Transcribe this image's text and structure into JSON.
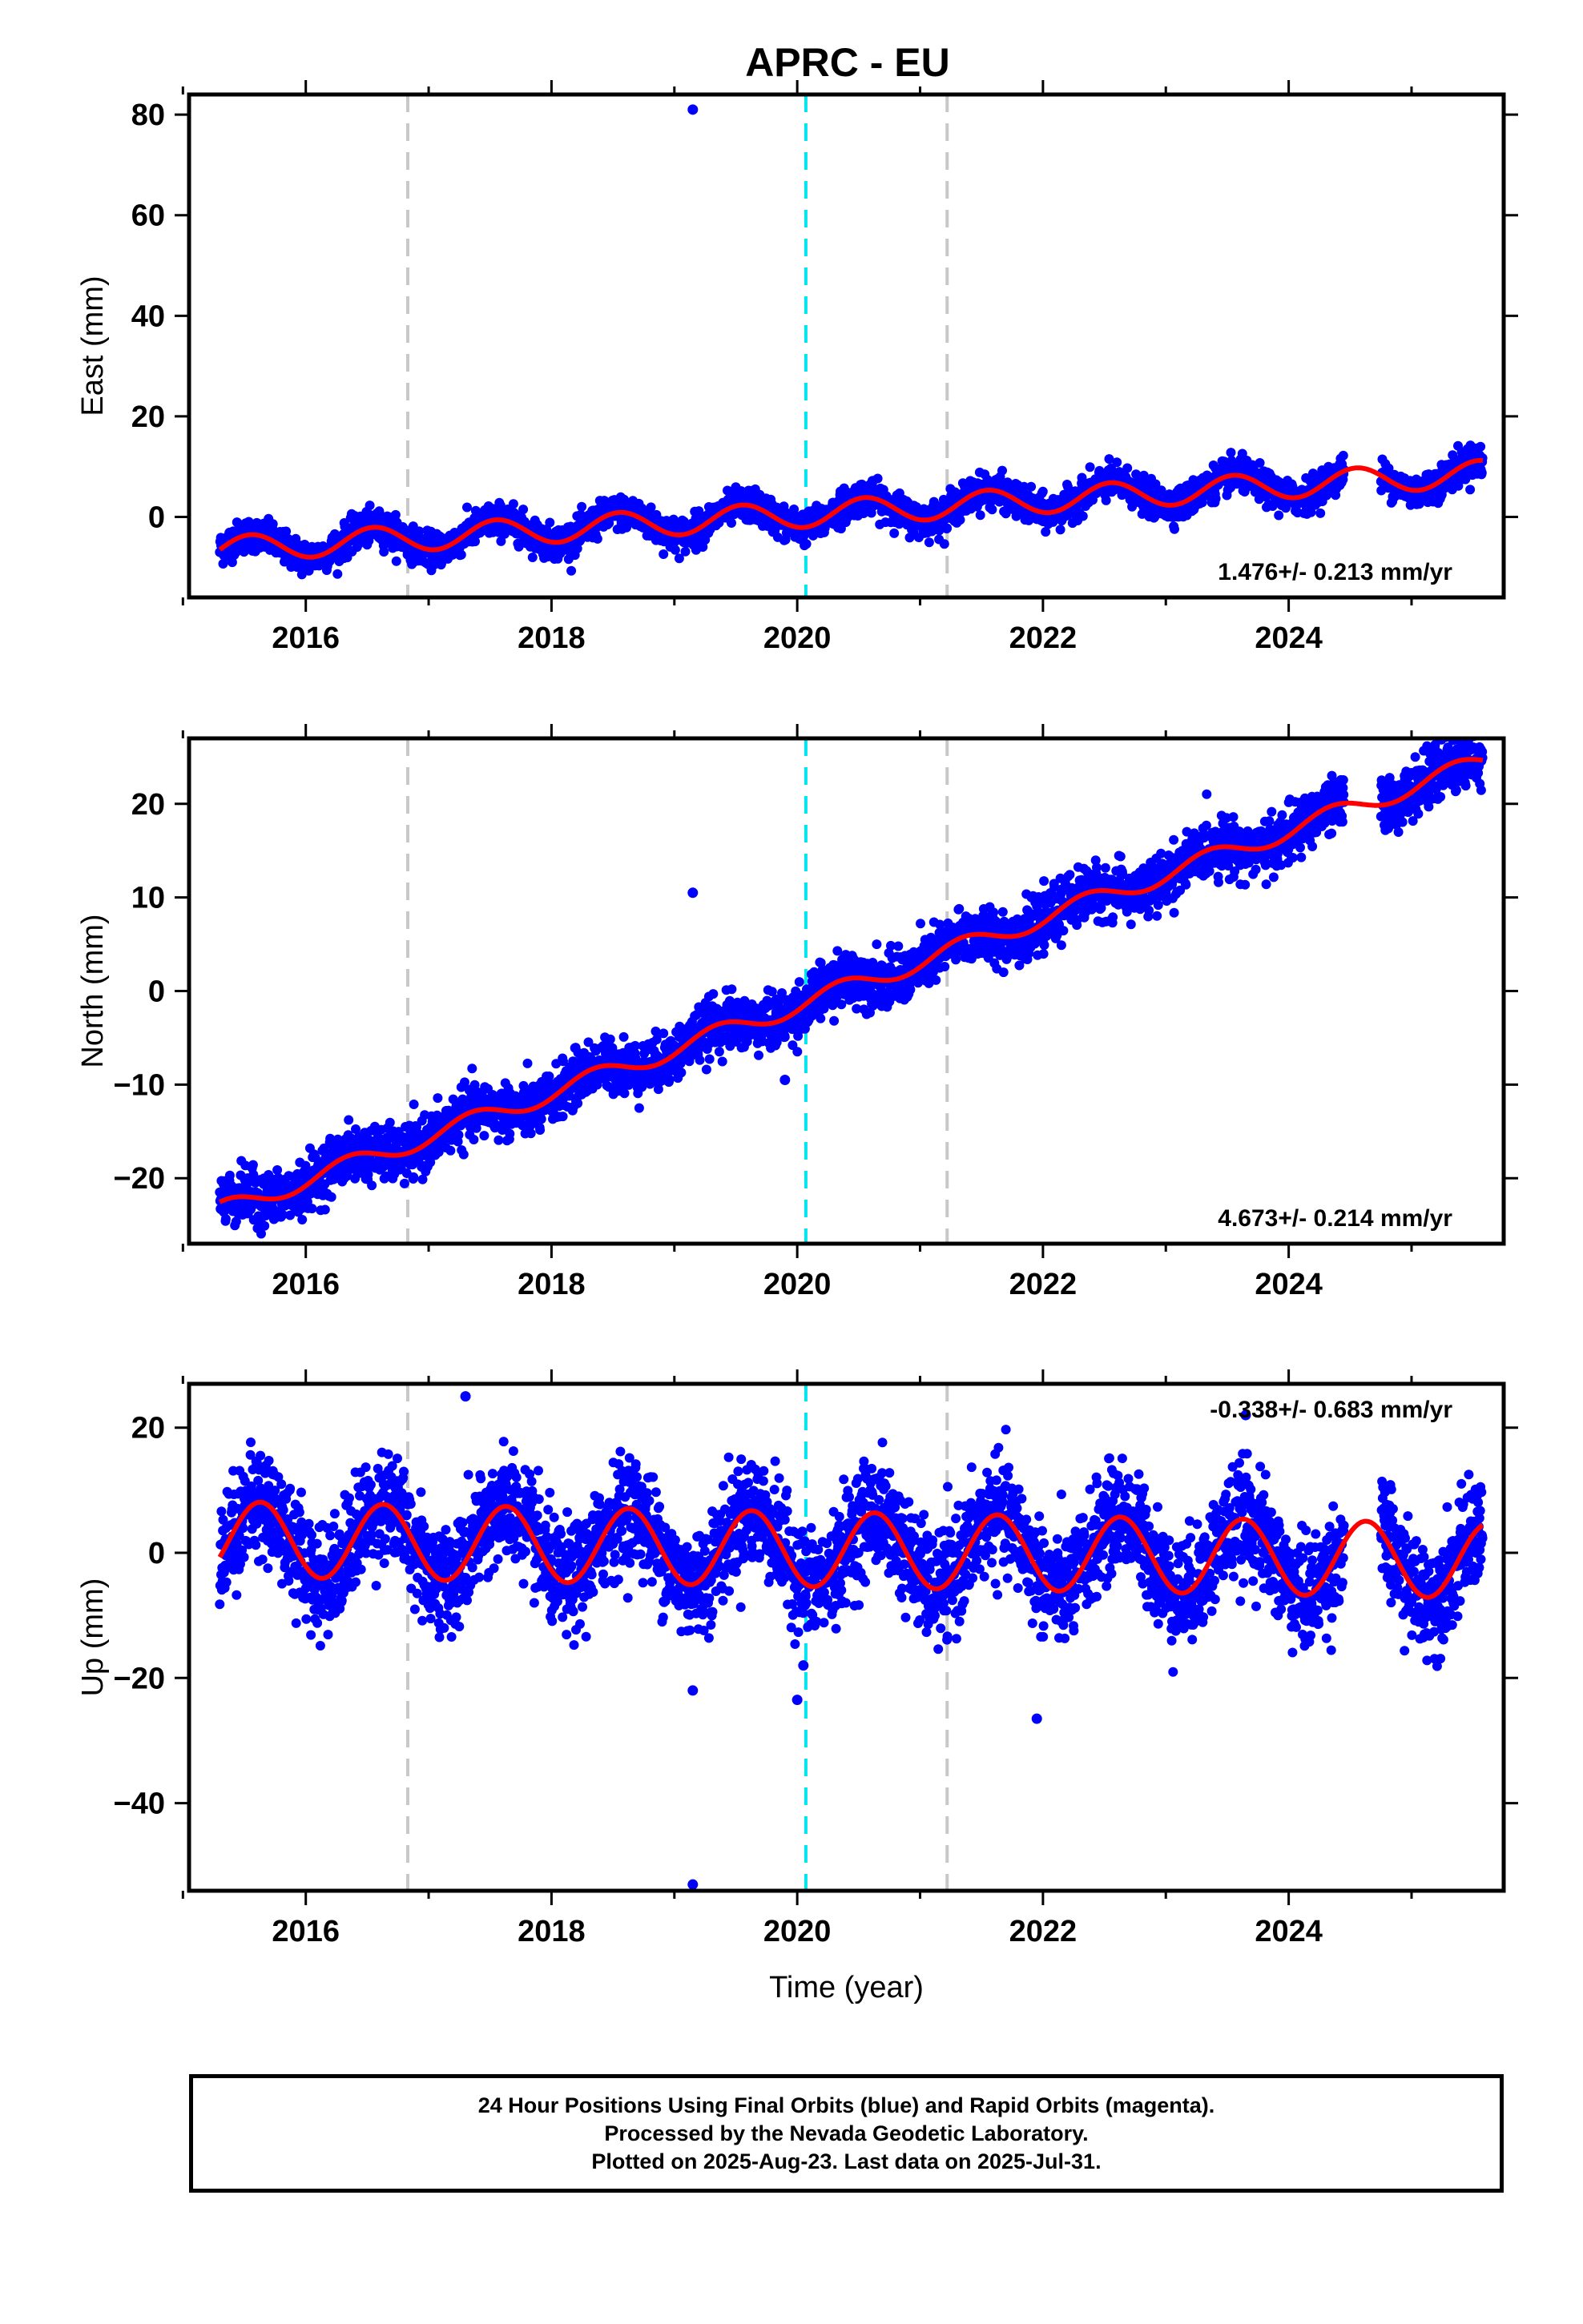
{
  "title": "APRC - EU",
  "colors": {
    "final_orbits": "#0000ff",
    "model": "#ff0000",
    "event_cyan": "#00e5ee",
    "event_gray": "#c8c8c8",
    "frame": "#000000"
  },
  "footer": {
    "line1": "24 Hour Positions Using Final Orbits (blue) and Rapid Orbits (magenta).",
    "line2": "Processed by the Nevada Geodetic Laboratory.",
    "line3": "Plotted on 2025-Aug-23. Last data on 2025-Jul-31."
  },
  "chart_data": [
    {
      "type": "scatter",
      "name": "east",
      "ylabel": "East (mm)",
      "xlabel": "",
      "xlim": [
        2015.05,
        2025.75
      ],
      "ylim": [
        -16,
        84
      ],
      "yticks": [
        0,
        20,
        40,
        60,
        80
      ],
      "xticks": [
        2016,
        2018,
        2020,
        2022,
        2024
      ],
      "rate_label": "1.476+/- 0.213 mm/yr",
      "trend": {
        "start": -6.5,
        "rate": 1.476,
        "amplitude": 2.6,
        "phase": 0.3,
        "noise": 1.6
      },
      "gap": [
        2024.45,
        2024.75
      ],
      "outliers": [
        [
          2019.15,
          81
        ]
      ],
      "event_lines": {
        "gray": [
          2016.83,
          2021.22
        ],
        "cyan": [
          2020.07
        ]
      }
    },
    {
      "type": "scatter",
      "name": "north",
      "ylabel": "North (mm)",
      "xlabel": "",
      "xlim": [
        2015.05,
        2025.75
      ],
      "ylim": [
        -27,
        27
      ],
      "yticks": [
        -20,
        -10,
        0,
        10,
        20
      ],
      "xticks": [
        2016,
        2018,
        2020,
        2022,
        2024
      ],
      "rate_label": "4.673+/- 0.214 mm/yr",
      "trend": {
        "start": -23.5,
        "rate": 4.673,
        "amplitude": 1.0,
        "phase": 0.1,
        "noise": 1.4
      },
      "gap": [
        2024.45,
        2024.75
      ],
      "outliers": [
        [
          2019.15,
          10.5
        ],
        [
          2019.9,
          -9.5
        ]
      ],
      "event_lines": {
        "gray": [
          2016.83,
          2021.22
        ],
        "cyan": [
          2020.07
        ]
      }
    },
    {
      "type": "scatter",
      "name": "up",
      "ylabel": "Up (mm)",
      "xlabel": "Time (year)",
      "xlim": [
        2015.05,
        2025.75
      ],
      "ylim": [
        -54,
        27
      ],
      "yticks": [
        -40,
        -20,
        0,
        20
      ],
      "xticks": [
        2016,
        2018,
        2020,
        2022,
        2024
      ],
      "rate_label": "-0.338+/- 0.683 mm/yr",
      "trend": {
        "start": 2.2,
        "rate": -0.338,
        "amplitude": 6.0,
        "phase": 0.38,
        "noise": 4.3
      },
      "gap": [
        2024.45,
        2024.75
      ],
      "outliers": [
        [
          2017.3,
          25
        ],
        [
          2019.15,
          -22
        ],
        [
          2019.15,
          -53
        ],
        [
          2020.0,
          -23.5
        ],
        [
          2021.95,
          -26.5
        ],
        [
          2023.65,
          22
        ],
        [
          2020.05,
          -18
        ]
      ],
      "event_lines": {
        "gray": [
          2016.83,
          2021.22
        ],
        "cyan": [
          2020.07
        ]
      }
    }
  ]
}
